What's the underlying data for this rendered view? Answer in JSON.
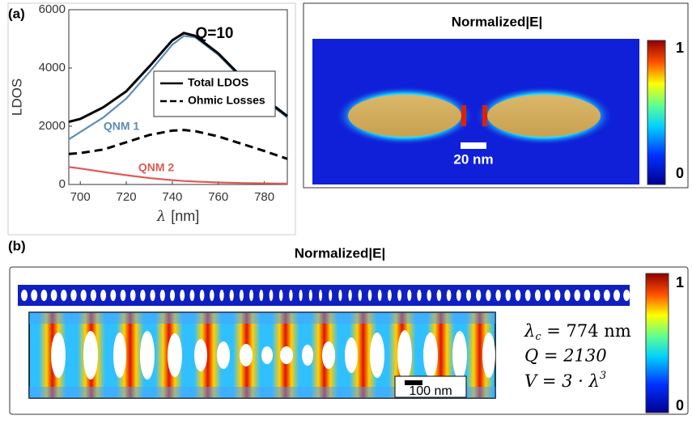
{
  "panel_a_label": "(a)",
  "chart_data": {
    "type": "line",
    "ylabel": "LDOS",
    "xlabel": {
      "symbol": "λ",
      "unit": "[nm]"
    },
    "annotation": "Q=10",
    "x": [
      695,
      700,
      710,
      720,
      730,
      740,
      745,
      750,
      760,
      770,
      780,
      790
    ],
    "xlim": [
      695,
      790
    ],
    "xticks": [
      700,
      720,
      740,
      760,
      780
    ],
    "ylim": [
      0,
      6000
    ],
    "yticks": [
      0,
      2000,
      4000,
      6000
    ],
    "legend_position": "upper right",
    "series": [
      {
        "name": "Total LDOS",
        "color": "#000000",
        "dash": false,
        "legend": true,
        "values": [
          2150,
          2250,
          2650,
          3200,
          4050,
          4950,
          5200,
          5100,
          4500,
          3700,
          2950,
          2350
        ]
      },
      {
        "name": "Ohmic Losses",
        "color": "#000000",
        "dash": true,
        "legend": true,
        "values": [
          1050,
          1080,
          1200,
          1450,
          1700,
          1850,
          1870,
          1830,
          1650,
          1400,
          1150,
          880
        ]
      },
      {
        "name": "QNM 1",
        "color": "#5b8db8",
        "dash": false,
        "legend": false,
        "values": [
          1550,
          1800,
          2300,
          2950,
          3850,
          4800,
          5100,
          5050,
          4450,
          3650,
          2900,
          2300
        ]
      },
      {
        "name": "QNM 2",
        "color": "#e05a55",
        "dash": false,
        "legend": false,
        "values": [
          600,
          550,
          430,
          320,
          220,
          150,
          120,
          100,
          70,
          50,
          40,
          30
        ]
      }
    ]
  },
  "field_a": {
    "title": "Normalized|E|",
    "colorbar_max": "1",
    "colorbar_min": "0",
    "scale_bar": "20 nm"
  },
  "panel_b_label": "(b)",
  "field_b": {
    "title": "Normalized|E|",
    "colorbar_max": "1",
    "colorbar_min": "0",
    "scale_bar": "100 nm",
    "eq1": {
      "symbol": "λ",
      "sub": "c",
      "rest": " = 774 nm"
    },
    "eq2": "Q  =  2130",
    "eq3": {
      "main": "V = 3 · λ",
      "sup": "3"
    }
  }
}
